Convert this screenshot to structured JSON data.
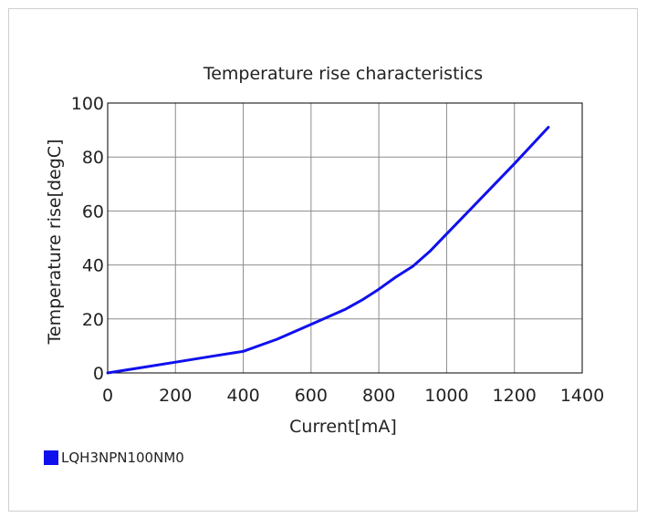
{
  "chart_data": {
    "type": "line",
    "title": "Temperature rise characteristics",
    "xlabel": "Current[mA]",
    "ylabel": "Temperature rise[degC]",
    "xlim": [
      0,
      1400
    ],
    "ylim": [
      0,
      100
    ],
    "xticks": [
      "0",
      "200",
      "400",
      "600",
      "800",
      "1000",
      "1200",
      "1400"
    ],
    "yticks": [
      "0",
      "20",
      "40",
      "60",
      "80",
      "100"
    ],
    "grid": true,
    "legend_position": "bottom-left",
    "series": [
      {
        "name": "LQH3NPN100NM0",
        "color": "#1010ee",
        "x": [
          0,
          100,
          200,
          300,
          400,
          500,
          600,
          700,
          750,
          800,
          850,
          900,
          950,
          1000,
          1100,
          1200,
          1300
        ],
        "y": [
          0,
          2,
          4,
          6,
          8,
          12.5,
          18,
          23.5,
          27,
          31,
          35.5,
          39.5,
          45,
          51.5,
          64.5,
          77.5,
          91
        ]
      }
    ]
  }
}
